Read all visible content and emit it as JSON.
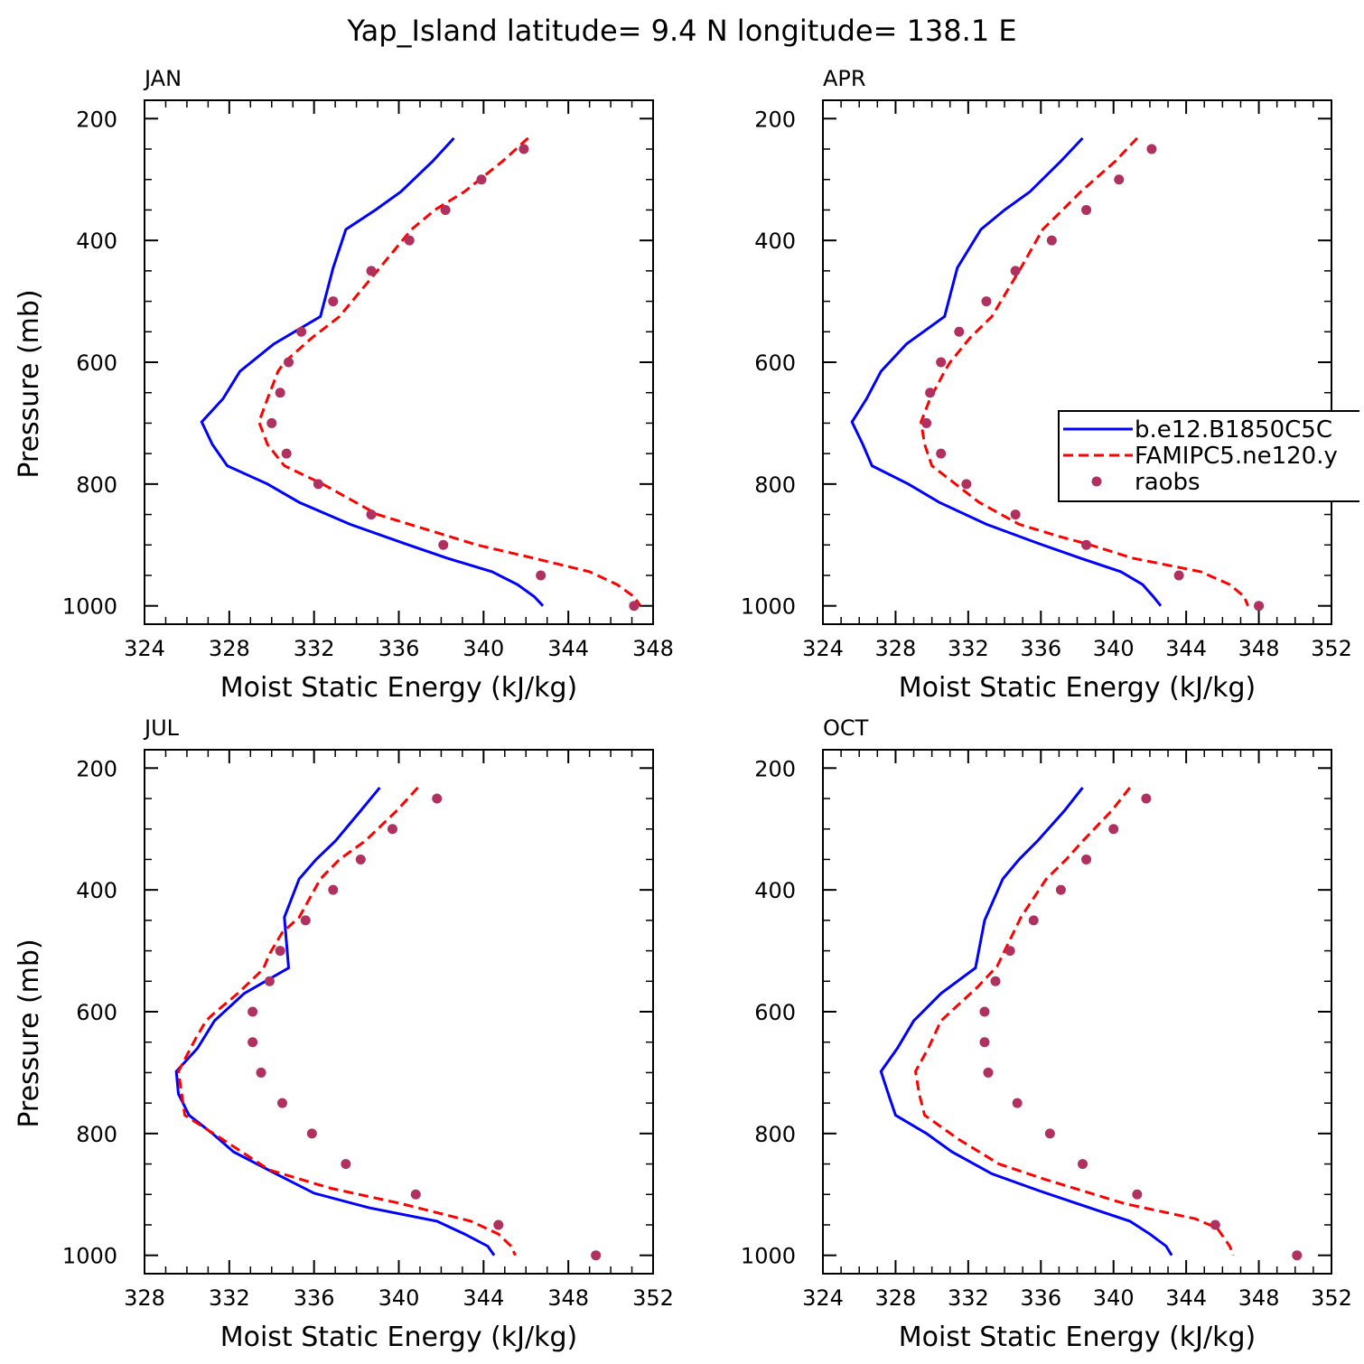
{
  "title": "Yap_Island  latitude= 9.4 N longitude= 138.1 E",
  "colors": {
    "model1": "#0000ff",
    "model2": "#ff0000",
    "obs": "#b03060"
  },
  "legend": {
    "entries": [
      {
        "label": "b.e12.B1850C5C",
        "style": "solid",
        "color": "#0000ff"
      },
      {
        "label": "FAMIPC5.ne120.y",
        "style": "dashed",
        "color": "#ff0000"
      },
      {
        "label": "raobs",
        "style": "dot",
        "color": "#b03060"
      }
    ]
  },
  "chart_data": [
    {
      "type": "line",
      "panel": "JAN",
      "xlabel": "Moist Static Energy (kJ/kg)",
      "ylabel": "Pressure (mb)",
      "xlim": [
        324,
        348
      ],
      "xticks": [
        324,
        328,
        332,
        336,
        340,
        344,
        348
      ],
      "ylim": [
        200,
        1000
      ],
      "yticks": [
        200,
        400,
        600,
        800,
        1000
      ],
      "series": [
        {
          "style": "solid",
          "points": [
            [
              338.6,
              232
            ],
            [
              337.6,
              270
            ],
            [
              336.1,
              320
            ],
            [
              334.9,
              350
            ],
            [
              333.5,
              382
            ],
            [
              332.9,
              445
            ],
            [
              332.3,
              525
            ],
            [
              330.1,
              570
            ],
            [
              328.5,
              615
            ],
            [
              327.7,
              660
            ],
            [
              326.7,
              698
            ],
            [
              327.2,
              735
            ],
            [
              327.9,
              770
            ],
            [
              329.8,
              800
            ],
            [
              331.3,
              830
            ],
            [
              333.7,
              866
            ],
            [
              336.3,
              898
            ],
            [
              338.3,
              922
            ],
            [
              340.4,
              944
            ],
            [
              341.6,
              965
            ],
            [
              342.4,
              985
            ],
            [
              342.8,
              1000
            ]
          ]
        },
        {
          "style": "dashed",
          "points": [
            [
              342.1,
              232
            ],
            [
              340.9,
              270
            ],
            [
              339.1,
              320
            ],
            [
              337.7,
              350
            ],
            [
              336.6,
              382
            ],
            [
              335.1,
              445
            ],
            [
              333.2,
              525
            ],
            [
              331.9,
              560
            ],
            [
              330.6,
              600
            ],
            [
              330.3,
              615
            ],
            [
              329.8,
              660
            ],
            [
              329.4,
              698
            ],
            [
              329.8,
              735
            ],
            [
              330.6,
              770
            ],
            [
              332.4,
              800
            ],
            [
              335.0,
              850
            ],
            [
              339.7,
              900
            ],
            [
              342.4,
              922
            ],
            [
              345.0,
              944
            ],
            [
              346.3,
              965
            ],
            [
              347.1,
              985
            ],
            [
              347.4,
              1000
            ]
          ]
        },
        {
          "style": "dot",
          "points": [
            [
              341.9,
              250
            ],
            [
              339.9,
              300
            ],
            [
              338.2,
              350
            ],
            [
              336.5,
              400
            ],
            [
              334.7,
              450
            ],
            [
              332.9,
              500
            ],
            [
              331.4,
              550
            ],
            [
              330.8,
              600
            ],
            [
              330.4,
              650
            ],
            [
              330.0,
              700
            ],
            [
              330.7,
              750
            ],
            [
              332.2,
              800
            ],
            [
              334.7,
              850
            ],
            [
              338.1,
              900
            ],
            [
              342.7,
              950
            ],
            [
              347.1,
              1000
            ]
          ]
        }
      ]
    },
    {
      "type": "line",
      "panel": "APR",
      "xlabel": "Moist Static Energy (kJ/kg)",
      "ylabel": "",
      "xlim": [
        324,
        352
      ],
      "xticks": [
        324,
        328,
        332,
        336,
        340,
        344,
        348,
        352
      ],
      "ylim": [
        200,
        1000
      ],
      "yticks": [
        200,
        400,
        600,
        800,
        1000
      ],
      "series": [
        {
          "style": "solid",
          "points": [
            [
              338.3,
              232
            ],
            [
              337.1,
              270
            ],
            [
              335.4,
              320
            ],
            [
              334.0,
              350
            ],
            [
              332.7,
              382
            ],
            [
              331.4,
              445
            ],
            [
              330.7,
              525
            ],
            [
              328.6,
              570
            ],
            [
              327.2,
              615
            ],
            [
              326.4,
              660
            ],
            [
              325.6,
              698
            ],
            [
              326.2,
              735
            ],
            [
              326.7,
              770
            ],
            [
              328.7,
              800
            ],
            [
              330.4,
              830
            ],
            [
              333.0,
              866
            ],
            [
              335.9,
              898
            ],
            [
              338.2,
              922
            ],
            [
              340.4,
              944
            ],
            [
              341.6,
              965
            ],
            [
              342.2,
              985
            ],
            [
              342.6,
              1000
            ]
          ]
        },
        {
          "style": "dashed",
          "points": [
            [
              341.3,
              232
            ],
            [
              340.1,
              270
            ],
            [
              338.2,
              320
            ],
            [
              337.2,
              350
            ],
            [
              336.1,
              382
            ],
            [
              334.9,
              445
            ],
            [
              333.3,
              525
            ],
            [
              332.1,
              560
            ],
            [
              331.0,
              600
            ],
            [
              330.7,
              615
            ],
            [
              329.9,
              660
            ],
            [
              329.4,
              698
            ],
            [
              329.6,
              735
            ],
            [
              330.0,
              770
            ],
            [
              332.6,
              830
            ],
            [
              334.8,
              866
            ],
            [
              337.0,
              886
            ],
            [
              338.5,
              898
            ],
            [
              341.1,
              922
            ],
            [
              344.8,
              944
            ],
            [
              346.4,
              965
            ],
            [
              347.2,
              985
            ],
            [
              347.4,
              1000
            ]
          ]
        },
        {
          "style": "dot",
          "points": [
            [
              342.1,
              250
            ],
            [
              340.3,
              300
            ],
            [
              338.5,
              350
            ],
            [
              336.6,
              400
            ],
            [
              334.6,
              450
            ],
            [
              333.0,
              500
            ],
            [
              331.5,
              550
            ],
            [
              330.5,
              600
            ],
            [
              329.9,
              650
            ],
            [
              329.7,
              700
            ],
            [
              330.5,
              750
            ],
            [
              331.9,
              800
            ],
            [
              334.6,
              850
            ],
            [
              338.5,
              900
            ],
            [
              343.6,
              950
            ],
            [
              348.0,
              1000
            ]
          ]
        }
      ]
    },
    {
      "type": "line",
      "panel": "JUL",
      "xlabel": "Moist Static Energy (kJ/kg)",
      "ylabel": "Pressure (mb)",
      "xlim": [
        328,
        352
      ],
      "xticks": [
        328,
        332,
        336,
        340,
        344,
        348,
        352
      ],
      "ylim": [
        200,
        1000
      ],
      "yticks": [
        200,
        400,
        600,
        800,
        1000
      ],
      "series": [
        {
          "style": "solid",
          "points": [
            [
              339.1,
              232
            ],
            [
              338.2,
              270
            ],
            [
              337.0,
              320
            ],
            [
              336.1,
              350
            ],
            [
              335.3,
              382
            ],
            [
              334.6,
              445
            ],
            [
              334.8,
              528
            ],
            [
              332.7,
              570
            ],
            [
              331.3,
              615
            ],
            [
              330.5,
              660
            ],
            [
              329.5,
              698
            ],
            [
              329.6,
              735
            ],
            [
              330.1,
              770
            ],
            [
              331.2,
              800
            ],
            [
              332.2,
              830
            ],
            [
              334.2,
              866
            ],
            [
              336.0,
              898
            ],
            [
              338.6,
              922
            ],
            [
              341.8,
              944
            ],
            [
              343.1,
              965
            ],
            [
              344.2,
              985
            ],
            [
              344.5,
              1000
            ]
          ]
        },
        {
          "style": "dashed",
          "points": [
            [
              340.9,
              232
            ],
            [
              339.9,
              270
            ],
            [
              338.4,
              320
            ],
            [
              337.2,
              350
            ],
            [
              336.3,
              382
            ],
            [
              335.3,
              445
            ],
            [
              334.5,
              470
            ],
            [
              333.9,
              505
            ],
            [
              333.6,
              530
            ],
            [
              332.4,
              570
            ],
            [
              331.2,
              605
            ],
            [
              330.9,
              615
            ],
            [
              330.4,
              645
            ],
            [
              329.6,
              698
            ],
            [
              329.9,
              770
            ],
            [
              331.7,
              810
            ],
            [
              333.9,
              860
            ],
            [
              336.8,
              890
            ],
            [
              340.1,
              915
            ],
            [
              343.4,
              944
            ],
            [
              344.7,
              965
            ],
            [
              345.3,
              985
            ],
            [
              345.5,
              1000
            ]
          ]
        },
        {
          "style": "dot",
          "points": [
            [
              341.8,
              250
            ],
            [
              339.7,
              300
            ],
            [
              338.2,
              350
            ],
            [
              336.9,
              400
            ],
            [
              335.6,
              450
            ],
            [
              334.4,
              500
            ],
            [
              333.9,
              550
            ],
            [
              333.1,
              600
            ],
            [
              333.1,
              650
            ],
            [
              333.5,
              700
            ],
            [
              334.5,
              750
            ],
            [
              335.9,
              800
            ],
            [
              337.5,
              850
            ],
            [
              340.8,
              900
            ],
            [
              344.7,
              950
            ],
            [
              349.3,
              1000
            ]
          ]
        }
      ]
    },
    {
      "type": "line",
      "panel": "OCT",
      "xlabel": "Moist Static Energy (kJ/kg)",
      "ylabel": "",
      "xlim": [
        324,
        352
      ],
      "xticks": [
        324,
        328,
        332,
        336,
        340,
        344,
        348,
        352
      ],
      "ylim": [
        200,
        1000
      ],
      "yticks": [
        200,
        400,
        600,
        800,
        1000
      ],
      "series": [
        {
          "style": "solid",
          "points": [
            [
              338.3,
              232
            ],
            [
              337.3,
              270
            ],
            [
              335.8,
              320
            ],
            [
              334.8,
              350
            ],
            [
              333.9,
              382
            ],
            [
              332.9,
              450
            ],
            [
              332.4,
              528
            ],
            [
              330.5,
              570
            ],
            [
              329.0,
              615
            ],
            [
              328.1,
              660
            ],
            [
              327.2,
              698
            ],
            [
              327.6,
              735
            ],
            [
              328.0,
              770
            ],
            [
              329.7,
              800
            ],
            [
              331.1,
              830
            ],
            [
              333.3,
              866
            ],
            [
              336.0,
              895
            ],
            [
              338.3,
              918
            ],
            [
              340.9,
              944
            ],
            [
              342.0,
              965
            ],
            [
              342.9,
              985
            ],
            [
              343.2,
              1000
            ]
          ]
        },
        {
          "style": "dashed",
          "points": [
            [
              340.9,
              232
            ],
            [
              339.9,
              270
            ],
            [
              338.3,
              320
            ],
            [
              337.4,
              350
            ],
            [
              336.3,
              382
            ],
            [
              334.9,
              445
            ],
            [
              333.6,
              525
            ],
            [
              332.5,
              560
            ],
            [
              331.4,
              590
            ],
            [
              330.5,
              615
            ],
            [
              329.8,
              660
            ],
            [
              329.1,
              698
            ],
            [
              329.3,
              735
            ],
            [
              329.6,
              770
            ],
            [
              331.5,
              810
            ],
            [
              333.7,
              850
            ],
            [
              336.2,
              875
            ],
            [
              340.6,
              915
            ],
            [
              344.5,
              940
            ],
            [
              345.7,
              955
            ],
            [
              346.4,
              985
            ],
            [
              346.6,
              1000
            ]
          ]
        },
        {
          "style": "dot",
          "points": [
            [
              341.8,
              250
            ],
            [
              340.0,
              300
            ],
            [
              338.5,
              350
            ],
            [
              337.1,
              400
            ],
            [
              335.6,
              450
            ],
            [
              334.3,
              500
            ],
            [
              333.5,
              550
            ],
            [
              332.9,
              600
            ],
            [
              332.9,
              650
            ],
            [
              333.1,
              700
            ],
            [
              334.7,
              750
            ],
            [
              336.5,
              800
            ],
            [
              338.3,
              850
            ],
            [
              341.3,
              900
            ],
            [
              345.6,
              950
            ],
            [
              350.1,
              1000
            ]
          ]
        }
      ]
    }
  ]
}
